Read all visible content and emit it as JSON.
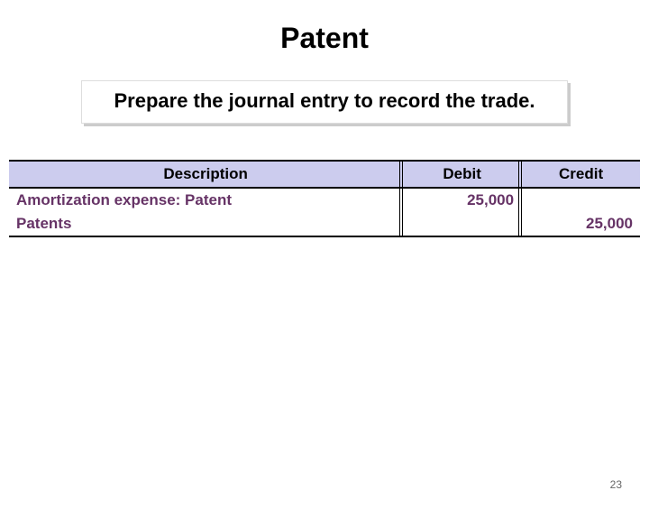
{
  "slide": {
    "title": "Patent",
    "instruction": "Prepare the journal entry to record the trade.",
    "page_number": "23"
  },
  "journal": {
    "headers": {
      "description": "Description",
      "debit": "Debit",
      "credit": "Credit"
    },
    "rows": [
      {
        "description": "Amortization expense: Patent",
        "debit": "25,000",
        "credit": ""
      },
      {
        "description": "Patents",
        "debit": "",
        "credit": "25,000"
      }
    ],
    "styling": {
      "header_bg": "#ccccee",
      "text_color": "#663366",
      "border_color": "#000000",
      "font_size": 17,
      "title_font_size": 32,
      "instruction_font_size": 22
    }
  }
}
